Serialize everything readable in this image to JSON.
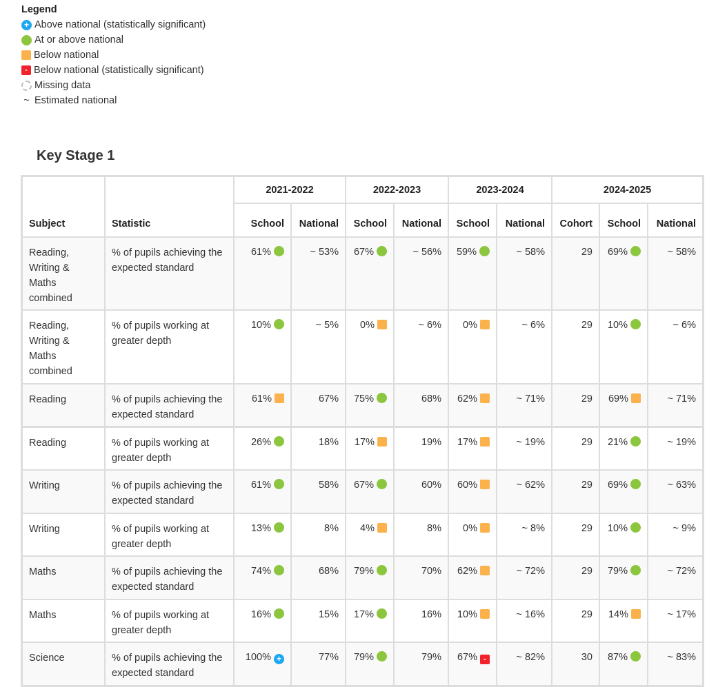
{
  "legend": {
    "title": "Legend",
    "items": [
      {
        "indicator": "blue-plus",
        "glyph": "+",
        "label": "Above national (statistically significant)"
      },
      {
        "indicator": "green",
        "glyph": "",
        "label": "At or above national"
      },
      {
        "indicator": "amber",
        "glyph": "",
        "label": "Below national"
      },
      {
        "indicator": "red-minus",
        "glyph": "-",
        "label": "Below national (statistically significant)"
      },
      {
        "indicator": "missing",
        "glyph": "",
        "label": "Missing data"
      },
      {
        "indicator": "tilde",
        "glyph": "~",
        "label": "Estimated national"
      }
    ]
  },
  "colors": {
    "green": "#8cc63f",
    "amber": "#fbb24d",
    "blue": "#1ea7f2",
    "red": "#f2212b"
  },
  "section_title": "Key Stage 1",
  "table": {
    "headers": {
      "subject": "Subject",
      "statistic": "Statistic",
      "school": "School",
      "national": "National",
      "cohort": "Cohort"
    },
    "years": [
      "2021-2022",
      "2022-2023",
      "2023-2024",
      "2024-2025"
    ],
    "rows": [
      {
        "subject": "Reading, Writing & Maths combined",
        "statistic": "% of pupils achieving the expected standard",
        "y1": [
          "61%",
          "green",
          "~ 53%"
        ],
        "y2": [
          "67%",
          "green",
          "~ 56%"
        ],
        "y3": [
          "59%",
          "green",
          "~ 58%"
        ],
        "cohort": "29",
        "y4": [
          "69%",
          "green",
          "~ 58%"
        ]
      },
      {
        "subject": "Reading, Writing & Maths combined",
        "statistic": "% of pupils working at greater depth",
        "y1": [
          "10%",
          "green",
          "~ 5%"
        ],
        "y2": [
          "0%",
          "amber",
          "~ 6%"
        ],
        "y3": [
          "0%",
          "amber",
          "~ 6%"
        ],
        "cohort": "29",
        "y4": [
          "10%",
          "green",
          "~ 6%"
        ]
      },
      {
        "subject": "Reading",
        "statistic": "% of pupils achieving the expected standard",
        "y1": [
          "61%",
          "amber",
          "67%"
        ],
        "y2": [
          "75%",
          "green",
          "68%"
        ],
        "y3": [
          "62%",
          "amber",
          "~ 71%"
        ],
        "cohort": "29",
        "y4": [
          "69%",
          "amber",
          "~ 71%"
        ]
      },
      {
        "subject": "Reading",
        "statistic": "% of pupils working at greater depth",
        "y1": [
          "26%",
          "green",
          "18%"
        ],
        "y2": [
          "17%",
          "amber",
          "19%"
        ],
        "y3": [
          "17%",
          "amber",
          "~ 19%"
        ],
        "cohort": "29",
        "y4": [
          "21%",
          "green",
          "~ 19%"
        ]
      },
      {
        "subject": "Writing",
        "statistic": "% of pupils achieving the expected standard",
        "y1": [
          "61%",
          "green",
          "58%"
        ],
        "y2": [
          "67%",
          "green",
          "60%"
        ],
        "y3": [
          "60%",
          "amber",
          "~ 62%"
        ],
        "cohort": "29",
        "y4": [
          "69%",
          "green",
          "~ 63%"
        ]
      },
      {
        "subject": "Writing",
        "statistic": "% of pupils working at greater depth",
        "y1": [
          "13%",
          "green",
          "8%"
        ],
        "y2": [
          "4%",
          "amber",
          "8%"
        ],
        "y3": [
          "0%",
          "amber",
          "~ 8%"
        ],
        "cohort": "29",
        "y4": [
          "10%",
          "green",
          "~ 9%"
        ]
      },
      {
        "subject": "Maths",
        "statistic": "% of pupils achieving the expected standard",
        "y1": [
          "74%",
          "green",
          "68%"
        ],
        "y2": [
          "79%",
          "green",
          "70%"
        ],
        "y3": [
          "62%",
          "amber",
          "~ 72%"
        ],
        "cohort": "29",
        "y4": [
          "79%",
          "green",
          "~ 72%"
        ]
      },
      {
        "subject": "Maths",
        "statistic": "% of pupils working at greater depth",
        "y1": [
          "16%",
          "green",
          "15%"
        ],
        "y2": [
          "17%",
          "green",
          "16%"
        ],
        "y3": [
          "10%",
          "amber",
          "~ 16%"
        ],
        "cohort": "29",
        "y4": [
          "14%",
          "amber",
          "~ 17%"
        ]
      },
      {
        "subject": "Science",
        "statistic": "% of pupils achieving the expected standard",
        "y1": [
          "100%",
          "blue-plus",
          "77%"
        ],
        "y2": [
          "79%",
          "green",
          "79%"
        ],
        "y3": [
          "67%",
          "red-minus",
          "~ 82%"
        ],
        "cohort": "30",
        "y4": [
          "87%",
          "green",
          "~ 83%"
        ]
      }
    ]
  }
}
